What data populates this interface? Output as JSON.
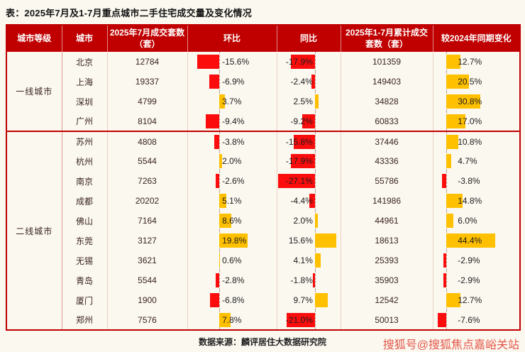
{
  "title": "表：2025年7月及1-7月重点城市二手住宅成交量及变化情况",
  "source": "数据来源：麟评居住大数据研究院",
  "watermark": "搜狐号@搜狐焦点嘉峪关站",
  "colors": {
    "header_bg": "#c00000",
    "table_border": "#c00000",
    "negative_bar": "#fb0d0d",
    "positive_bar": "#ffc000",
    "watermark_text": "#e4574a"
  },
  "table": {
    "columns": [
      "城市等级",
      "城市",
      "2025年7月成交套数（套）",
      "环比",
      "同比",
      "2025年1-7月累计成交套数（套）",
      "较2024年同期变化"
    ],
    "groups": [
      {
        "tier": "一线城市",
        "rows": [
          {
            "city": "北京",
            "jul_sales": 12784,
            "mom": -15.6,
            "yoy": -17.9,
            "cum_sales": 101359,
            "vs_2024": 12.7
          },
          {
            "city": "上海",
            "jul_sales": 19337,
            "mom": -6.9,
            "yoy": -2.4,
            "cum_sales": 149403,
            "vs_2024": 20.5
          },
          {
            "city": "深圳",
            "jul_sales": 4799,
            "mom": 3.7,
            "yoy": 2.5,
            "cum_sales": 34828,
            "vs_2024": 30.8
          },
          {
            "city": "广州",
            "jul_sales": 8104,
            "mom": -9.4,
            "yoy": -9.2,
            "cum_sales": 60833,
            "vs_2024": 17.0
          }
        ]
      },
      {
        "tier": "二线城市",
        "rows": [
          {
            "city": "苏州",
            "jul_sales": 4808,
            "mom": -3.8,
            "yoy": -15.8,
            "cum_sales": 37446,
            "vs_2024": 10.8
          },
          {
            "city": "杭州",
            "jul_sales": 5544,
            "mom": 2.0,
            "yoy": -17.9,
            "cum_sales": 43336,
            "vs_2024": 4.7
          },
          {
            "city": "南京",
            "jul_sales": 7263,
            "mom": -2.6,
            "yoy": -27.1,
            "cum_sales": 55786,
            "vs_2024": -3.8
          },
          {
            "city": "成都",
            "jul_sales": 20202,
            "mom": 5.1,
            "yoy": -4.4,
            "cum_sales": 141986,
            "vs_2024": 14.8
          },
          {
            "city": "佛山",
            "jul_sales": 7164,
            "mom": 8.6,
            "yoy": 2.0,
            "cum_sales": 44961,
            "vs_2024": 6.0
          },
          {
            "city": "东莞",
            "jul_sales": 3127,
            "mom": 19.8,
            "yoy": 15.6,
            "cum_sales": 18613,
            "vs_2024": 44.4
          },
          {
            "city": "无锡",
            "jul_sales": 3621,
            "mom": 0.6,
            "yoy": 4.1,
            "cum_sales": 25393,
            "vs_2024": -2.9
          },
          {
            "city": "青岛",
            "jul_sales": 5544,
            "mom": -2.8,
            "yoy": -1.8,
            "cum_sales": 35903,
            "vs_2024": -2.9
          },
          {
            "city": "厦门",
            "jul_sales": 1900,
            "mom": -6.8,
            "yoy": 9.7,
            "cum_sales": 12542,
            "vs_2024": 12.7
          },
          {
            "city": "郑州",
            "jul_sales": 7576,
            "mom": 7.8,
            "yoy": -21.0,
            "cum_sales": 50013,
            "vs_2024": -7.6
          }
        ]
      }
    ]
  },
  "chart_data": {
    "type": "table",
    "title": "表：2025年7月及1-7月重点城市二手住宅成交量及变化情况",
    "columns": [
      "城市等级",
      "城市",
      "2025年7月成交套数（套）",
      "环比(%)",
      "同比(%)",
      "2025年1-7月累计成交套数（套）",
      "较2024年同期变化(%)"
    ],
    "rows": [
      [
        "一线城市",
        "北京",
        12784,
        -15.6,
        -17.9,
        101359,
        12.7
      ],
      [
        "一线城市",
        "上海",
        19337,
        -6.9,
        -2.4,
        149403,
        20.5
      ],
      [
        "一线城市",
        "深圳",
        4799,
        3.7,
        2.5,
        34828,
        30.8
      ],
      [
        "一线城市",
        "广州",
        8104,
        -9.4,
        -9.2,
        60833,
        17.0
      ],
      [
        "二线城市",
        "苏州",
        4808,
        -3.8,
        -15.8,
        37446,
        10.8
      ],
      [
        "二线城市",
        "杭州",
        5544,
        2.0,
        -17.9,
        43336,
        4.7
      ],
      [
        "二线城市",
        "南京",
        7263,
        -2.6,
        -27.1,
        55786,
        -3.8
      ],
      [
        "二线城市",
        "成都",
        20202,
        5.1,
        -4.4,
        141986,
        14.8
      ],
      [
        "二线城市",
        "佛山",
        7164,
        8.6,
        2.0,
        44961,
        6.0
      ],
      [
        "二线城市",
        "东莞",
        3127,
        19.8,
        15.6,
        18613,
        44.4
      ],
      [
        "二线城市",
        "无锡",
        3621,
        0.6,
        4.1,
        25393,
        -2.9
      ],
      [
        "二线城市",
        "青岛",
        5544,
        -2.8,
        -1.8,
        35903,
        -2.9
      ],
      [
        "二线城市",
        "厦门",
        1900,
        -6.8,
        9.7,
        12542,
        12.7
      ],
      [
        "二线城市",
        "郑州",
        7576,
        7.8,
        -21.0,
        50013,
        -7.6
      ]
    ],
    "bar_columns": [
      "环比(%)",
      "同比(%)",
      "较2024年同期变化(%)"
    ],
    "bar_colors": {
      "negative": "#fb0d0d",
      "positive": "#ffc000"
    },
    "source": "数据来源：麟评居住大数据研究院"
  }
}
